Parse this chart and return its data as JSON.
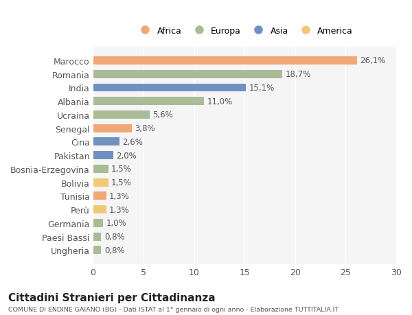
{
  "categories": [
    "Marocco",
    "Romania",
    "India",
    "Albania",
    "Ucraina",
    "Senegal",
    "Cina",
    "Pakistan",
    "Bosnia-Erzegovina",
    "Bolivia",
    "Tunisia",
    "Perù",
    "Germania",
    "Paesi Bassi",
    "Ungheria"
  ],
  "values": [
    26.1,
    18.7,
    15.1,
    11.0,
    5.6,
    3.8,
    2.6,
    2.0,
    1.5,
    1.5,
    1.3,
    1.3,
    1.0,
    0.8,
    0.8
  ],
  "labels": [
    "26,1%",
    "18,7%",
    "15,1%",
    "11,0%",
    "5,6%",
    "3,8%",
    "2,6%",
    "2,0%",
    "1,5%",
    "1,5%",
    "1,3%",
    "1,3%",
    "1,0%",
    "0,8%",
    "0,8%"
  ],
  "continents": [
    "Africa",
    "Europa",
    "Asia",
    "Europa",
    "Europa",
    "Africa",
    "Asia",
    "Asia",
    "Europa",
    "America",
    "Africa",
    "America",
    "Europa",
    "Europa",
    "Europa"
  ],
  "colors": {
    "Africa": "#F0A878",
    "Europa": "#A8BC96",
    "Asia": "#7090C0",
    "America": "#F0C878"
  },
  "legend_order": [
    "Africa",
    "Europa",
    "Asia",
    "America"
  ],
  "title": "Cittadini Stranieri per Cittadinanza",
  "subtitle": "COMUNE DI ENDINE GAIANO (BG) - Dati ISTAT al 1° gennaio di ogni anno - Elaborazione TUTTITALIA.IT",
  "xlim": [
    0,
    30
  ],
  "xticks": [
    0,
    5,
    10,
    15,
    20,
    25,
    30
  ],
  "bg_color": "#ffffff",
  "plot_bg_color": "#f5f5f5"
}
